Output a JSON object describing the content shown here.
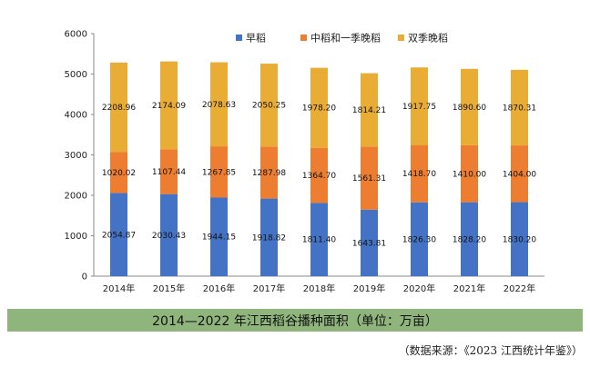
{
  "chart_data": {
    "type": "bar",
    "stacked": true,
    "categories": [
      "2014年",
      "2015年",
      "2016年",
      "2017年",
      "2018年",
      "2019年",
      "2020年",
      "2021年",
      "2022年"
    ],
    "series": [
      {
        "name": "早稻",
        "color": "#4472c4",
        "values": [
          2054.87,
          2030.43,
          1944.15,
          1918.82,
          1811.4,
          1643.81,
          1826.3,
          1828.2,
          1830.2
        ],
        "labels": [
          "2054.87",
          "2030.43",
          "1944.15",
          "1918.82",
          "1811.40",
          "1643.81",
          "1826.30",
          "1828.20",
          "1830.20"
        ]
      },
      {
        "name": "中稻和一季晚稻",
        "color": "#ed7d31",
        "values": [
          1020.02,
          1107.44,
          1267.85,
          1287.98,
          1364.7,
          1561.31,
          1418.7,
          1410.0,
          1404.0
        ],
        "labels": [
          "1020.02",
          "1107.44",
          "1267.85",
          "1287.98",
          "1364.70",
          "1561.31",
          "1418.70",
          "1410.00",
          "1404.00"
        ]
      },
      {
        "name": "双季晚稻",
        "color": "#e9ac35",
        "values": [
          2208.96,
          2174.09,
          2078.63,
          2050.25,
          1978.2,
          1814.21,
          1917.75,
          1890.6,
          1870.31
        ],
        "labels": [
          "2208.96",
          "2174.09",
          "2078.63",
          "2050.25",
          "1978.20",
          "1814.21",
          "1917.75",
          "1890.60",
          "1870.31"
        ]
      }
    ],
    "yticks": [
      "0",
      "1000",
      "2000",
      "3000",
      "4000",
      "5000",
      "6000"
    ],
    "ylim": [
      0,
      6000
    ],
    "grid": false,
    "legend_position": "top"
  },
  "title": "2014—2022 年江西稻谷播种面积（单位：万亩）",
  "source": "（数据来源：《2023 江西统计年鉴》）"
}
